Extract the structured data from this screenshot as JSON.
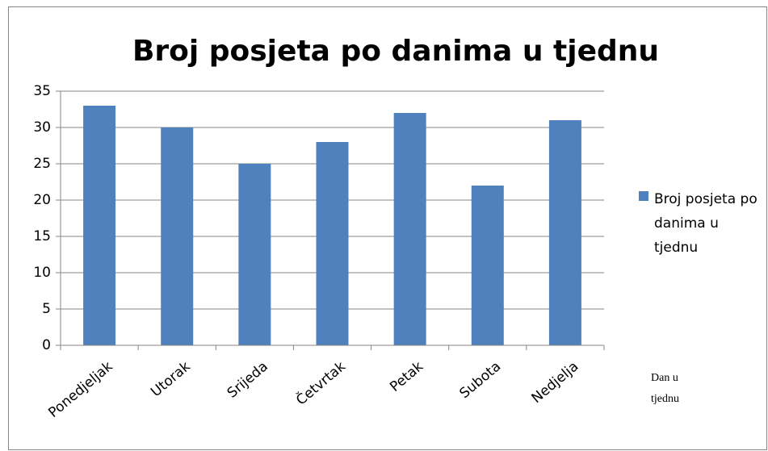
{
  "chart_data": {
    "type": "bar",
    "title": "Broj posjeta po danima u tjednu",
    "categories": [
      "Ponedjeljak",
      "Utorak",
      "Srijeda",
      "Četvrtak",
      "Petak",
      "Subota",
      "Nedjelja"
    ],
    "series": [
      {
        "name": "Broj posjeta po danima u tjednu",
        "color": "#4f81bd",
        "values": [
          33,
          30,
          25,
          28,
          32,
          22,
          31
        ]
      }
    ],
    "x_label": "Dan u tjednu",
    "ylim": [
      0,
      35
    ],
    "yticks": [
      0,
      5,
      10,
      15,
      20,
      25,
      30,
      35
    ],
    "grid": true,
    "legend": "right"
  }
}
